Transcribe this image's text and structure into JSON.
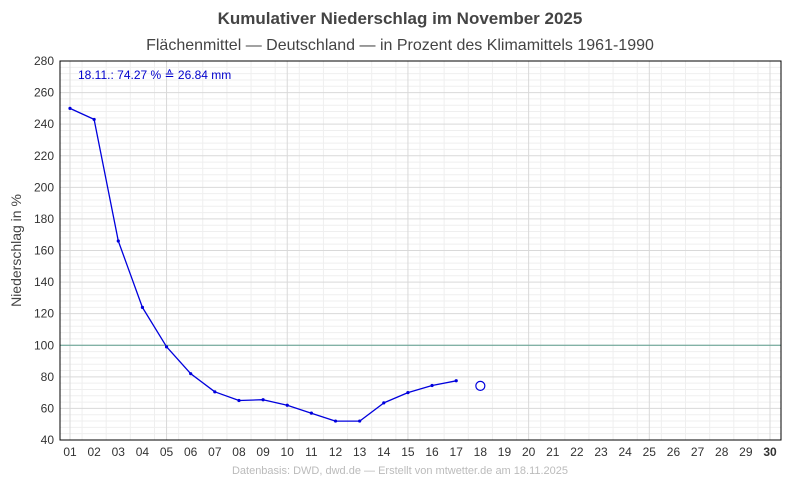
{
  "chart_data": {
    "type": "line",
    "title": "Kumulativer Niederschlag im November 2025",
    "subtitle": "Flächenmittel — Deutschland — in Prozent des Klimamittels 1961-1990",
    "ylabel": "Niederschlag in %",
    "xlabel": "",
    "ylim": [
      40,
      280
    ],
    "yticks": [
      40,
      60,
      80,
      100,
      120,
      140,
      160,
      180,
      200,
      220,
      240,
      260,
      280
    ],
    "xlim": [
      1,
      30
    ],
    "x_tick_labels": [
      "01",
      "02",
      "03",
      "04",
      "05",
      "06",
      "07",
      "08",
      "09",
      "10",
      "11",
      "12",
      "13",
      "14",
      "15",
      "16",
      "17",
      "18",
      "19",
      "20",
      "21",
      "22",
      "23",
      "24",
      "25",
      "26",
      "27",
      "28",
      "29",
      "30"
    ],
    "grid": true,
    "series": [
      {
        "x": [
          1,
          2,
          3,
          4,
          5,
          6,
          7,
          8,
          9,
          10,
          11,
          12,
          13,
          14,
          15,
          16,
          17
        ],
        "values": [
          250,
          243,
          166,
          124,
          99,
          82,
          70.5,
          65,
          65.5,
          62,
          57,
          52,
          52,
          63.5,
          70,
          74.5,
          77.5
        ]
      }
    ],
    "projection": {
      "x": 18,
      "value": 74.27
    },
    "reference_line": {
      "value": 100,
      "color": "#5f9f8f"
    },
    "annotation": "18.11.:  74.27 %  ≙  26.84 mm",
    "footer": "Datenbasis: DWD, dwd.de — Erstellt von mtwetter.de am 18.11.2025",
    "colors": {
      "line": "#0000dd",
      "annotation": "#0000cc",
      "grid_major": "#d9d9d9",
      "grid_minor": "#efefef",
      "frame": "#000000"
    }
  }
}
